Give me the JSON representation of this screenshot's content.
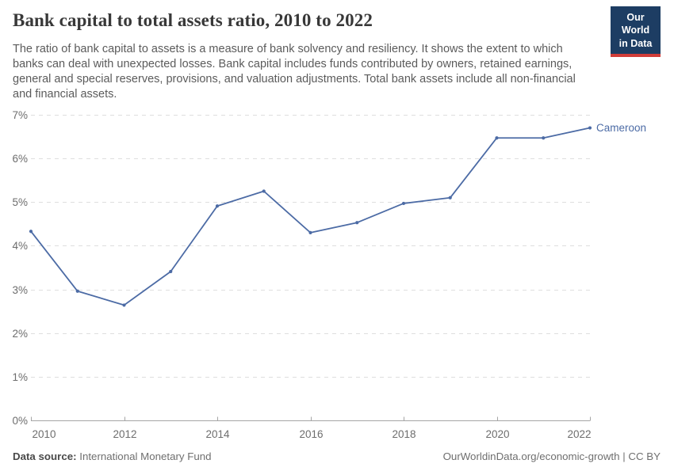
{
  "header": {
    "title": "Bank capital to total assets ratio, 2010 to 2022",
    "subtitle": "The ratio of bank capital to assets is a measure of bank solvency and resiliency. It shows the extent to which banks can deal with unexpected losses. Bank capital includes funds contributed by owners, retained earnings, general and special reserves, provisions, and valuation adjustments. Total bank assets include all non-financial and financial assets.",
    "logo": {
      "line1": "Our World",
      "line2": "in Data",
      "bg_color": "#1d3d63",
      "stripe_color": "#d13d39",
      "text_color": "#ffffff"
    }
  },
  "chart_data": {
    "type": "line",
    "title": "Bank capital to total assets ratio, 2010 to 2022",
    "x": [
      2010,
      2011,
      2012,
      2013,
      2014,
      2015,
      2016,
      2017,
      2018,
      2019,
      2020,
      2021,
      2022
    ],
    "series": [
      {
        "name": "Cameroon",
        "color": "#4c6ba5",
        "values": [
          4.33,
          2.96,
          2.64,
          3.41,
          4.91,
          5.25,
          4.3,
          4.53,
          4.97,
          5.1,
          6.47,
          6.47,
          6.7
        ]
      }
    ],
    "ylim": [
      0,
      7
    ],
    "yticks": [
      0,
      1,
      2,
      3,
      4,
      5,
      6,
      7
    ],
    "ytick_suffix": "%",
    "xticks": [
      2010,
      2012,
      2014,
      2016,
      2018,
      2020,
      2022
    ],
    "xlabel": "",
    "ylabel": "",
    "grid": "horizontal-dashed",
    "legend_position": "line-end"
  },
  "footer": {
    "source_label": "Data source:",
    "source_value": "International Monetary Fund",
    "credit": "OurWorldinData.org/economic-growth | CC BY"
  }
}
